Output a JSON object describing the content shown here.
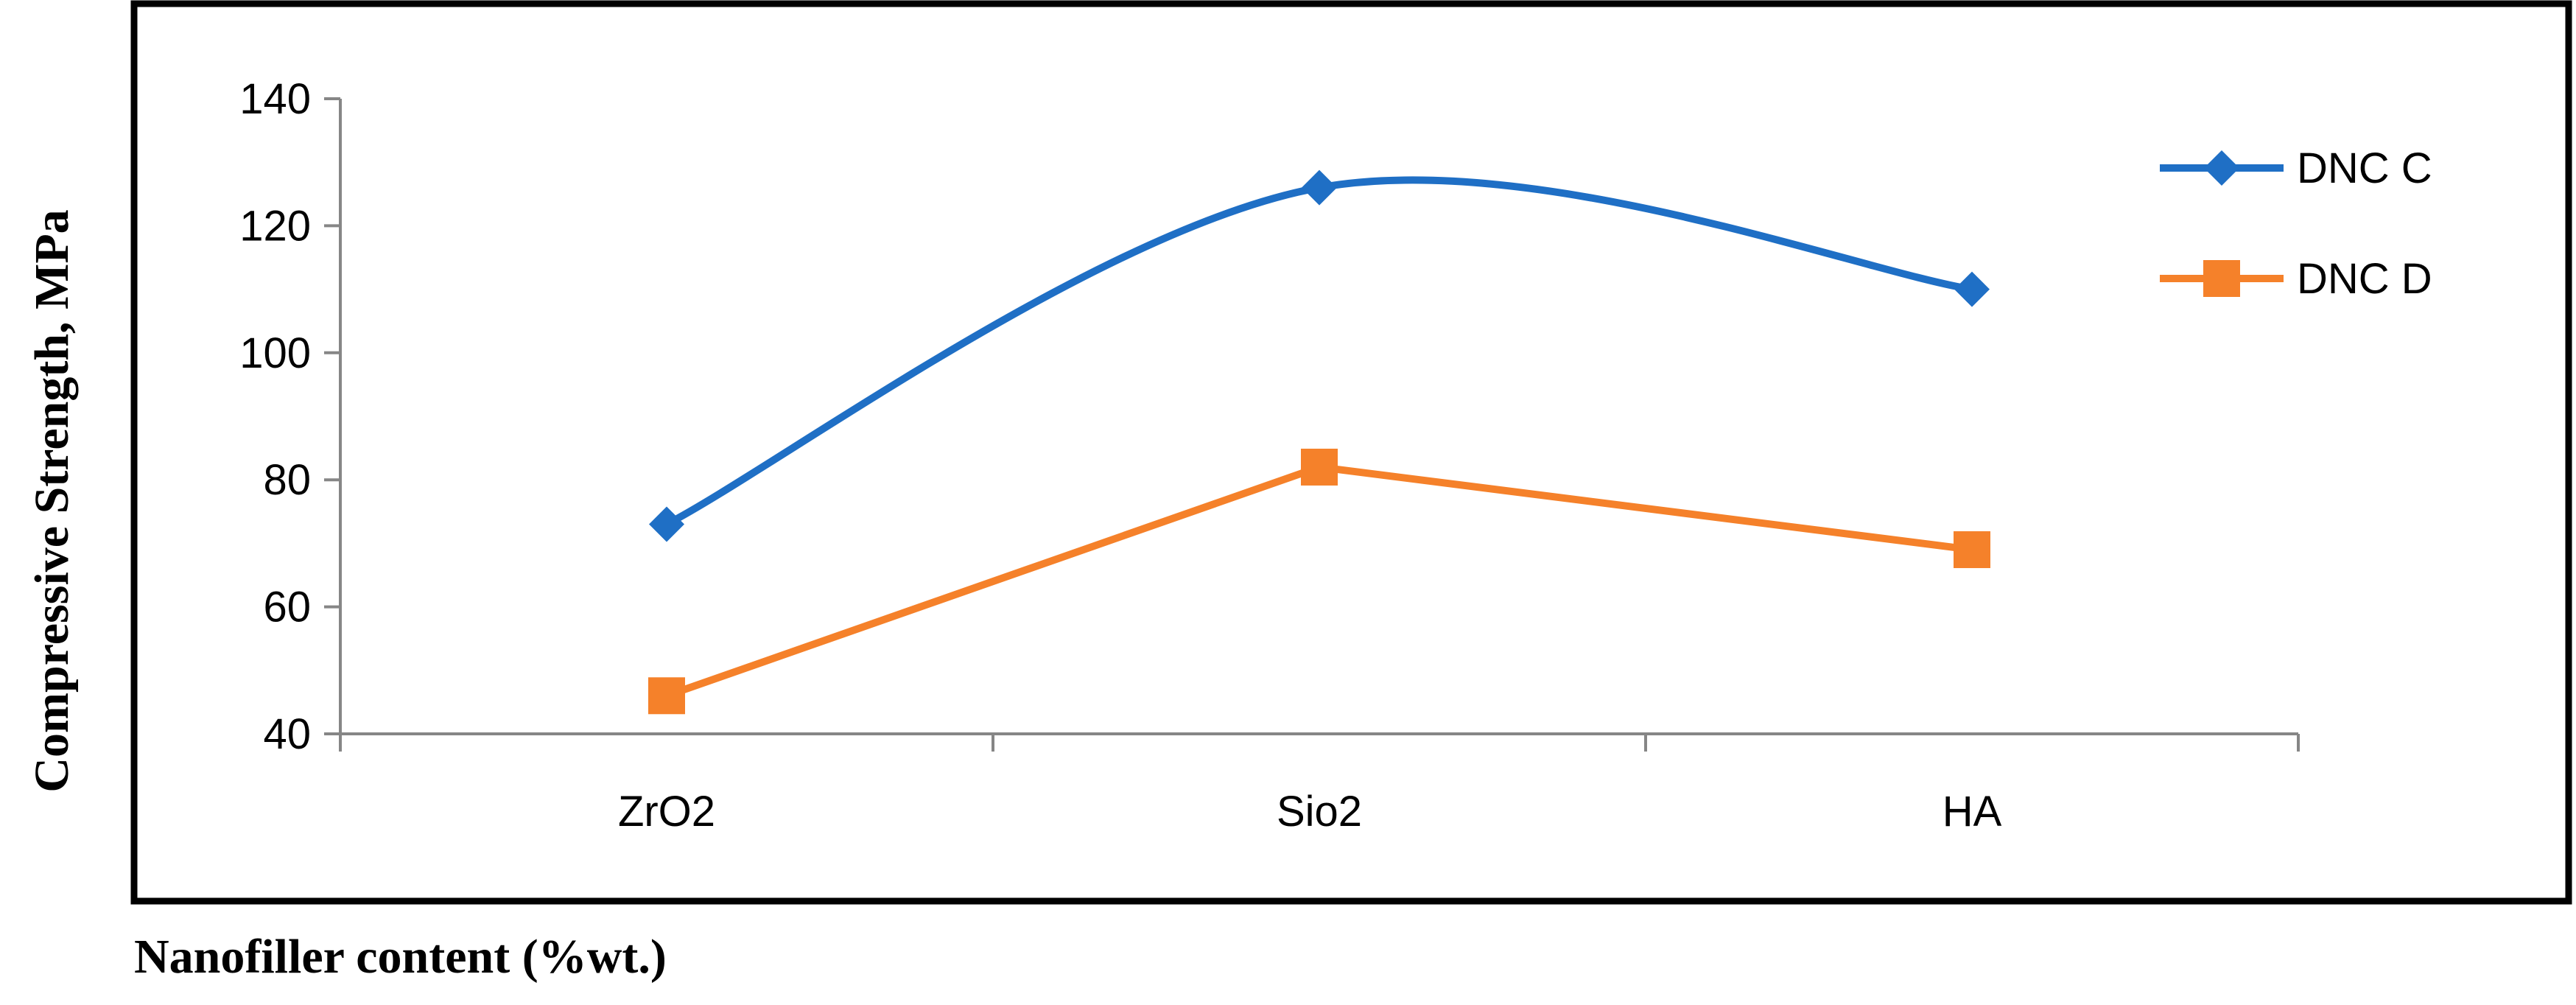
{
  "chart_data": {
    "type": "line",
    "title": "",
    "xlabel": "Nanofiller content (%wt.)",
    "ylabel": "Compressive Strength, MPa",
    "categories": [
      "ZrO2",
      "Sio2",
      "HA"
    ],
    "ylim": [
      40,
      140
    ],
    "yticks": [
      40,
      60,
      80,
      100,
      120,
      140
    ],
    "grid": false,
    "legend_position": "right",
    "smooth_lines": true,
    "series": [
      {
        "name": "DNC C",
        "values": [
          73,
          126,
          110
        ],
        "color": "#1F6FC5",
        "marker": "diamond"
      },
      {
        "name": "DNC D",
        "values": [
          46,
          82,
          69
        ],
        "color": "#F5812A",
        "marker": "square"
      }
    ]
  }
}
